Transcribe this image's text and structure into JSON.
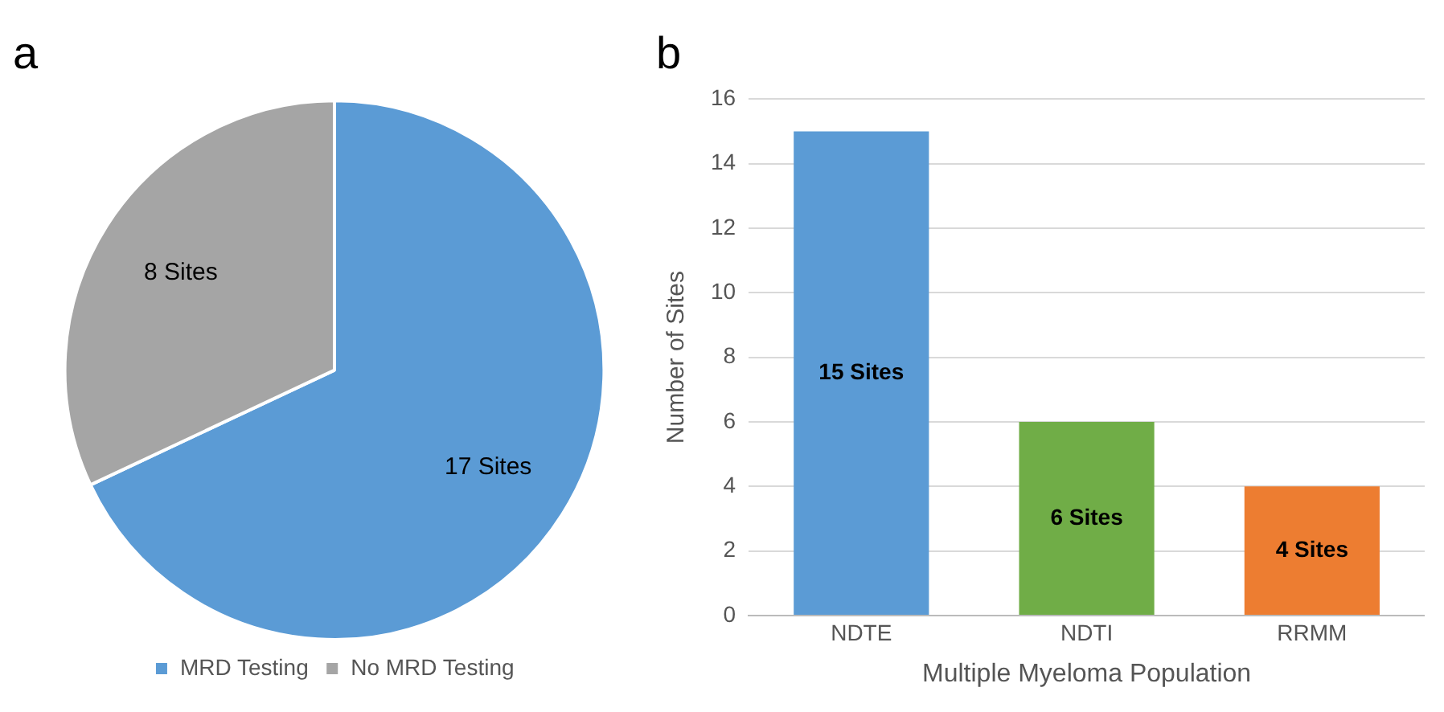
{
  "chart_data": [
    {
      "type": "pie",
      "title": "a",
      "categories": [
        "MRD Testing",
        "No MRD Testing"
      ],
      "values": [
        17,
        8
      ],
      "colors": [
        "#5b9bd5",
        "#a5a5a5"
      ],
      "value_labels": [
        "17 Sites",
        "8 Sites"
      ],
      "legend": "bottom"
    },
    {
      "type": "bar",
      "title": "b",
      "categories": [
        "NDTE",
        "NDTI",
        "RRMM"
      ],
      "values": [
        15,
        6,
        4
      ],
      "colors": [
        "#5b9bd5",
        "#70ad47",
        "#ed7d31"
      ],
      "value_labels": [
        "15 Sites",
        "6 Sites",
        "4 Sites"
      ],
      "ylim": [
        0,
        16
      ],
      "yticks": [
        0,
        2,
        4,
        6,
        8,
        10,
        12,
        14,
        16
      ],
      "grid": "y",
      "xlabel": "Multiple Myeloma Population",
      "ylabel": "Number of Sites",
      "legend": false
    }
  ]
}
